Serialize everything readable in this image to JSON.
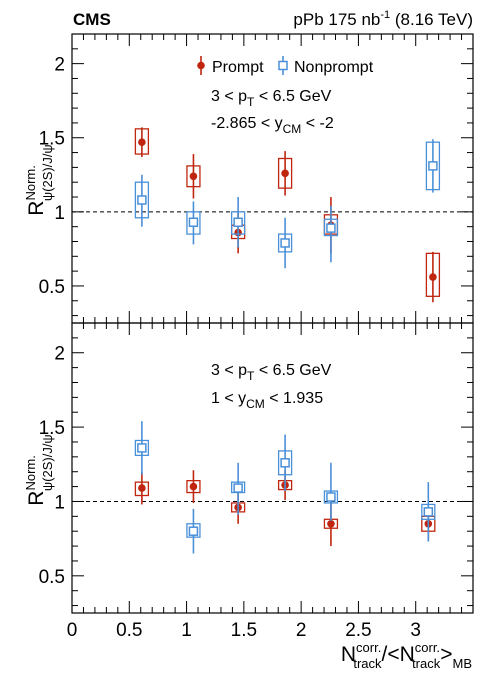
{
  "header": {
    "experiment": "CMS",
    "lumi_prefix": "pPb 175 nb",
    "lumi_sup": "-1",
    "energy": " (8.16 TeV)"
  },
  "legend": {
    "prompt": "Prompt",
    "nonprompt": "Nonprompt"
  },
  "axis_labels": {
    "ylabel_main": "R",
    "ylabel_sup": "Norm.",
    "ylabel_sub": "ψ(2S)/J/ψ",
    "xlabel_main": "N",
    "xlabel_sup1": "corr.",
    "xlabel_sub1": "track",
    "xlabel_mid": "/<N",
    "xlabel_sup2": "corr.",
    "xlabel_sub2": "track",
    "xlabel_end": ">",
    "xlabel_sub3": "MB"
  },
  "colors": {
    "prompt": "#c0260f",
    "nonprompt": "#4a90d9"
  },
  "chart_data": [
    {
      "type": "scatter",
      "panel": "top",
      "annotations": [
        {
          "pre": "3 < p",
          "sub": "T",
          "post": " < 6.5 GeV"
        },
        {
          "pre": "-2.865 < y",
          "sub": "CM",
          "post": " < -2"
        }
      ],
      "xlim": [
        0,
        3.5
      ],
      "ylim": [
        0.25,
        2.2
      ],
      "xticks": [
        0,
        0.5,
        1,
        1.5,
        2,
        2.5,
        3
      ],
      "xtick_labels": [
        "0",
        "0.5",
        "1",
        "1.5",
        "2",
        "2.5",
        "3"
      ],
      "yticks": [
        0.5,
        1,
        1.5,
        2
      ],
      "ytick_labels": [
        "0.5",
        "1",
        "1.5",
        "2"
      ],
      "reference_line": 1,
      "legend_position": "top-center",
      "series": [
        {
          "name": "Prompt",
          "marker": "filled-circle",
          "x": [
            0.61,
            1.06,
            1.45,
            1.86,
            2.26,
            3.15
          ],
          "y": [
            1.47,
            1.24,
            0.86,
            1.26,
            0.91,
            0.56
          ],
          "stat_lo": [
            1.37,
            1.09,
            0.72,
            1.11,
            0.72,
            0.39
          ],
          "stat_hi": [
            1.57,
            1.39,
            1.0,
            1.41,
            1.1,
            0.73
          ],
          "syst_lo": [
            1.39,
            1.17,
            0.82,
            1.16,
            0.85,
            0.43
          ],
          "syst_hi": [
            1.56,
            1.31,
            0.91,
            1.36,
            0.98,
            0.72
          ]
        },
        {
          "name": "Nonprompt",
          "marker": "open-square",
          "x": [
            0.61,
            1.06,
            1.45,
            1.86,
            2.26,
            3.15
          ],
          "y": [
            1.08,
            0.93,
            0.93,
            0.79,
            0.89,
            1.31
          ],
          "stat_lo": [
            0.9,
            0.78,
            0.76,
            0.62,
            0.66,
            1.13
          ],
          "stat_hi": [
            1.25,
            1.07,
            1.1,
            0.96,
            1.04,
            1.49
          ],
          "syst_lo": [
            0.96,
            0.85,
            0.85,
            0.73,
            0.84,
            1.15
          ],
          "syst_hi": [
            1.2,
            1.0,
            1.0,
            0.85,
            0.95,
            1.47
          ]
        }
      ]
    },
    {
      "type": "scatter",
      "panel": "bottom",
      "annotations": [
        {
          "pre": "3 < p",
          "sub": "T",
          "post": " < 6.5 GeV"
        },
        {
          "pre": "1 < y",
          "sub": "CM",
          "post": " < 1.935"
        }
      ],
      "xlim": [
        0,
        3.5
      ],
      "ylim": [
        0.25,
        2.2
      ],
      "xticks": [
        0,
        0.5,
        1,
        1.5,
        2,
        2.5,
        3
      ],
      "xtick_labels": [
        "0",
        "0.5",
        "1",
        "1.5",
        "2",
        "2.5",
        "3"
      ],
      "yticks": [
        0.5,
        1,
        1.5,
        2
      ],
      "ytick_labels": [
        "0.5",
        "1",
        "1.5",
        "2"
      ],
      "reference_line": 1,
      "series": [
        {
          "name": "Prompt",
          "marker": "filled-circle",
          "x": [
            0.61,
            1.06,
            1.45,
            1.86,
            2.26,
            3.11
          ],
          "y": [
            1.09,
            1.1,
            0.96,
            1.11,
            0.85,
            0.85
          ],
          "stat_lo": [
            0.98,
            0.99,
            0.85,
            1.01,
            0.7,
            0.74
          ],
          "stat_hi": [
            1.2,
            1.21,
            1.06,
            1.21,
            1.0,
            0.96
          ],
          "syst_lo": [
            1.04,
            1.06,
            0.93,
            1.08,
            0.82,
            0.8
          ],
          "syst_hi": [
            1.13,
            1.14,
            0.99,
            1.14,
            0.88,
            0.9
          ]
        },
        {
          "name": "Nonprompt",
          "marker": "open-square",
          "x": [
            0.61,
            1.06,
            1.45,
            1.86,
            2.26,
            3.11
          ],
          "y": [
            1.36,
            0.8,
            1.09,
            1.26,
            1.03,
            0.93
          ],
          "stat_lo": [
            1.18,
            0.65,
            0.91,
            1.07,
            0.87,
            0.73
          ],
          "stat_hi": [
            1.54,
            0.95,
            1.26,
            1.45,
            1.26,
            1.13
          ],
          "syst_lo": [
            1.31,
            0.76,
            1.06,
            1.18,
            0.99,
            0.88
          ],
          "syst_hi": [
            1.41,
            0.85,
            1.13,
            1.34,
            1.07,
            0.98
          ]
        }
      ]
    }
  ]
}
